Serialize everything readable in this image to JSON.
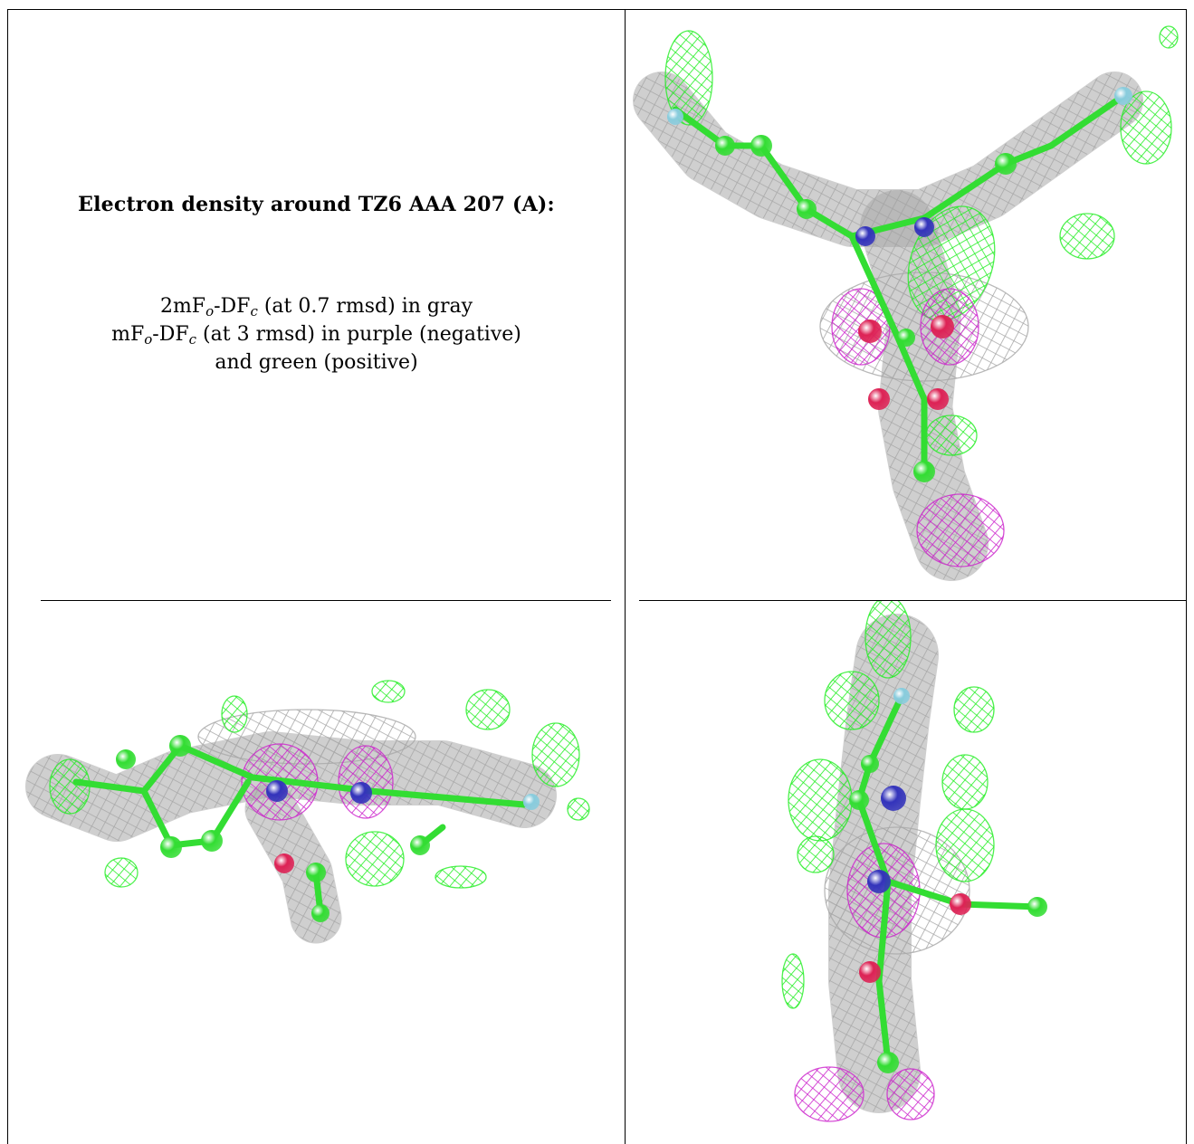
{
  "caption": {
    "title": "Electron density around TZ6 AAA 207 (A):",
    "line1_pre": "2mF",
    "line1_sub1": "o",
    "line1_mid": "-DF",
    "line1_sub2": "c",
    "line1_post": " (at 0.7 rmsd) in gray",
    "line2_pre": "mF",
    "line2_sub1": "o",
    "line2_mid": "-DF",
    "line2_sub2": "c",
    "line2_post": " (at 3 rmsd) in purple (negative)",
    "line3": "and green (positive)"
  },
  "colors": {
    "gray_mesh": "#a8a8a8",
    "negative_mesh": "#cc22cc",
    "positive_mesh": "#22ee22",
    "carbon": "#33dd33",
    "nitrogen": "#3333bb",
    "oxygen": "#dd2255",
    "fluorine": "#88ccdd"
  },
  "panels": [
    {
      "view": "front"
    },
    {
      "view": "side"
    },
    {
      "view": "top"
    }
  ]
}
